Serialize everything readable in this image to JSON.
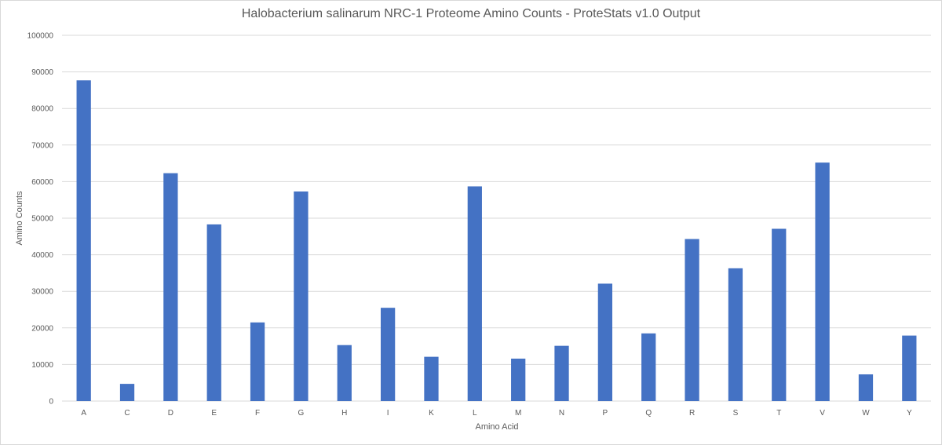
{
  "chart_data": {
    "type": "bar",
    "title": "Halobacterium salinarum NRC-1 Proteome Amino Counts - ProteStats v1.0 Output",
    "xlabel": "Amino Acid",
    "ylabel": "Amino Counts",
    "categories": [
      "A",
      "C",
      "D",
      "E",
      "F",
      "G",
      "H",
      "I",
      "K",
      "L",
      "M",
      "N",
      "P",
      "Q",
      "R",
      "S",
      "T",
      "V",
      "W",
      "Y"
    ],
    "values": [
      87700,
      4700,
      62300,
      48300,
      21500,
      57300,
      15300,
      25500,
      12100,
      58700,
      11600,
      15100,
      32100,
      18500,
      44300,
      36300,
      47100,
      65200,
      7300,
      17900
    ],
    "ylim": [
      0,
      100000
    ],
    "yticks": [
      "0",
      "10000",
      "20000",
      "30000",
      "40000",
      "50000",
      "60000",
      "70000",
      "80000",
      "90000",
      "100000"
    ],
    "grid": true,
    "legend": "none",
    "bar_color": "#4472c4",
    "grid_color": "#d9d9d9"
  }
}
